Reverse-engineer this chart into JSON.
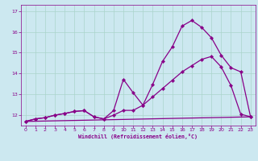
{
  "xlabel": "Windchill (Refroidissement éolien,°C)",
  "background_color": "#cce8f0",
  "grid_color": "#aad4cc",
  "line_color": "#880088",
  "xlim": [
    -0.5,
    23.5
  ],
  "ylim": [
    11.5,
    17.3
  ],
  "yticks": [
    12,
    13,
    14,
    15,
    16,
    17
  ],
  "xticks": [
    0,
    1,
    2,
    3,
    4,
    5,
    6,
    7,
    8,
    9,
    10,
    11,
    12,
    13,
    14,
    15,
    16,
    17,
    18,
    19,
    20,
    21,
    22,
    23
  ],
  "series1_x": [
    0,
    1,
    2,
    3,
    4,
    5,
    6,
    7,
    8,
    9,
    10,
    11,
    12,
    13,
    14,
    15,
    16,
    17,
    18,
    19,
    20,
    21,
    22,
    23
  ],
  "series1_y": [
    11.7,
    11.82,
    11.88,
    12.0,
    12.08,
    12.18,
    12.22,
    11.92,
    11.82,
    12.0,
    12.23,
    12.23,
    12.48,
    12.88,
    13.28,
    13.68,
    14.08,
    14.38,
    14.68,
    14.82,
    14.32,
    13.42,
    12.05,
    11.92
  ],
  "series2_x": [
    0,
    1,
    2,
    3,
    4,
    5,
    6,
    7,
    8,
    9,
    10,
    11,
    12,
    13,
    14,
    15,
    16,
    17,
    18,
    19,
    20,
    21,
    22,
    23
  ],
  "series2_y": [
    11.7,
    11.82,
    11.88,
    12.0,
    12.08,
    12.18,
    12.22,
    11.92,
    11.82,
    12.22,
    13.72,
    13.08,
    12.48,
    13.48,
    14.58,
    15.28,
    16.28,
    16.55,
    16.22,
    15.72,
    14.88,
    14.28,
    14.08,
    11.92
  ],
  "series3_x": [
    0,
    23
  ],
  "series3_y": [
    11.7,
    11.92
  ]
}
